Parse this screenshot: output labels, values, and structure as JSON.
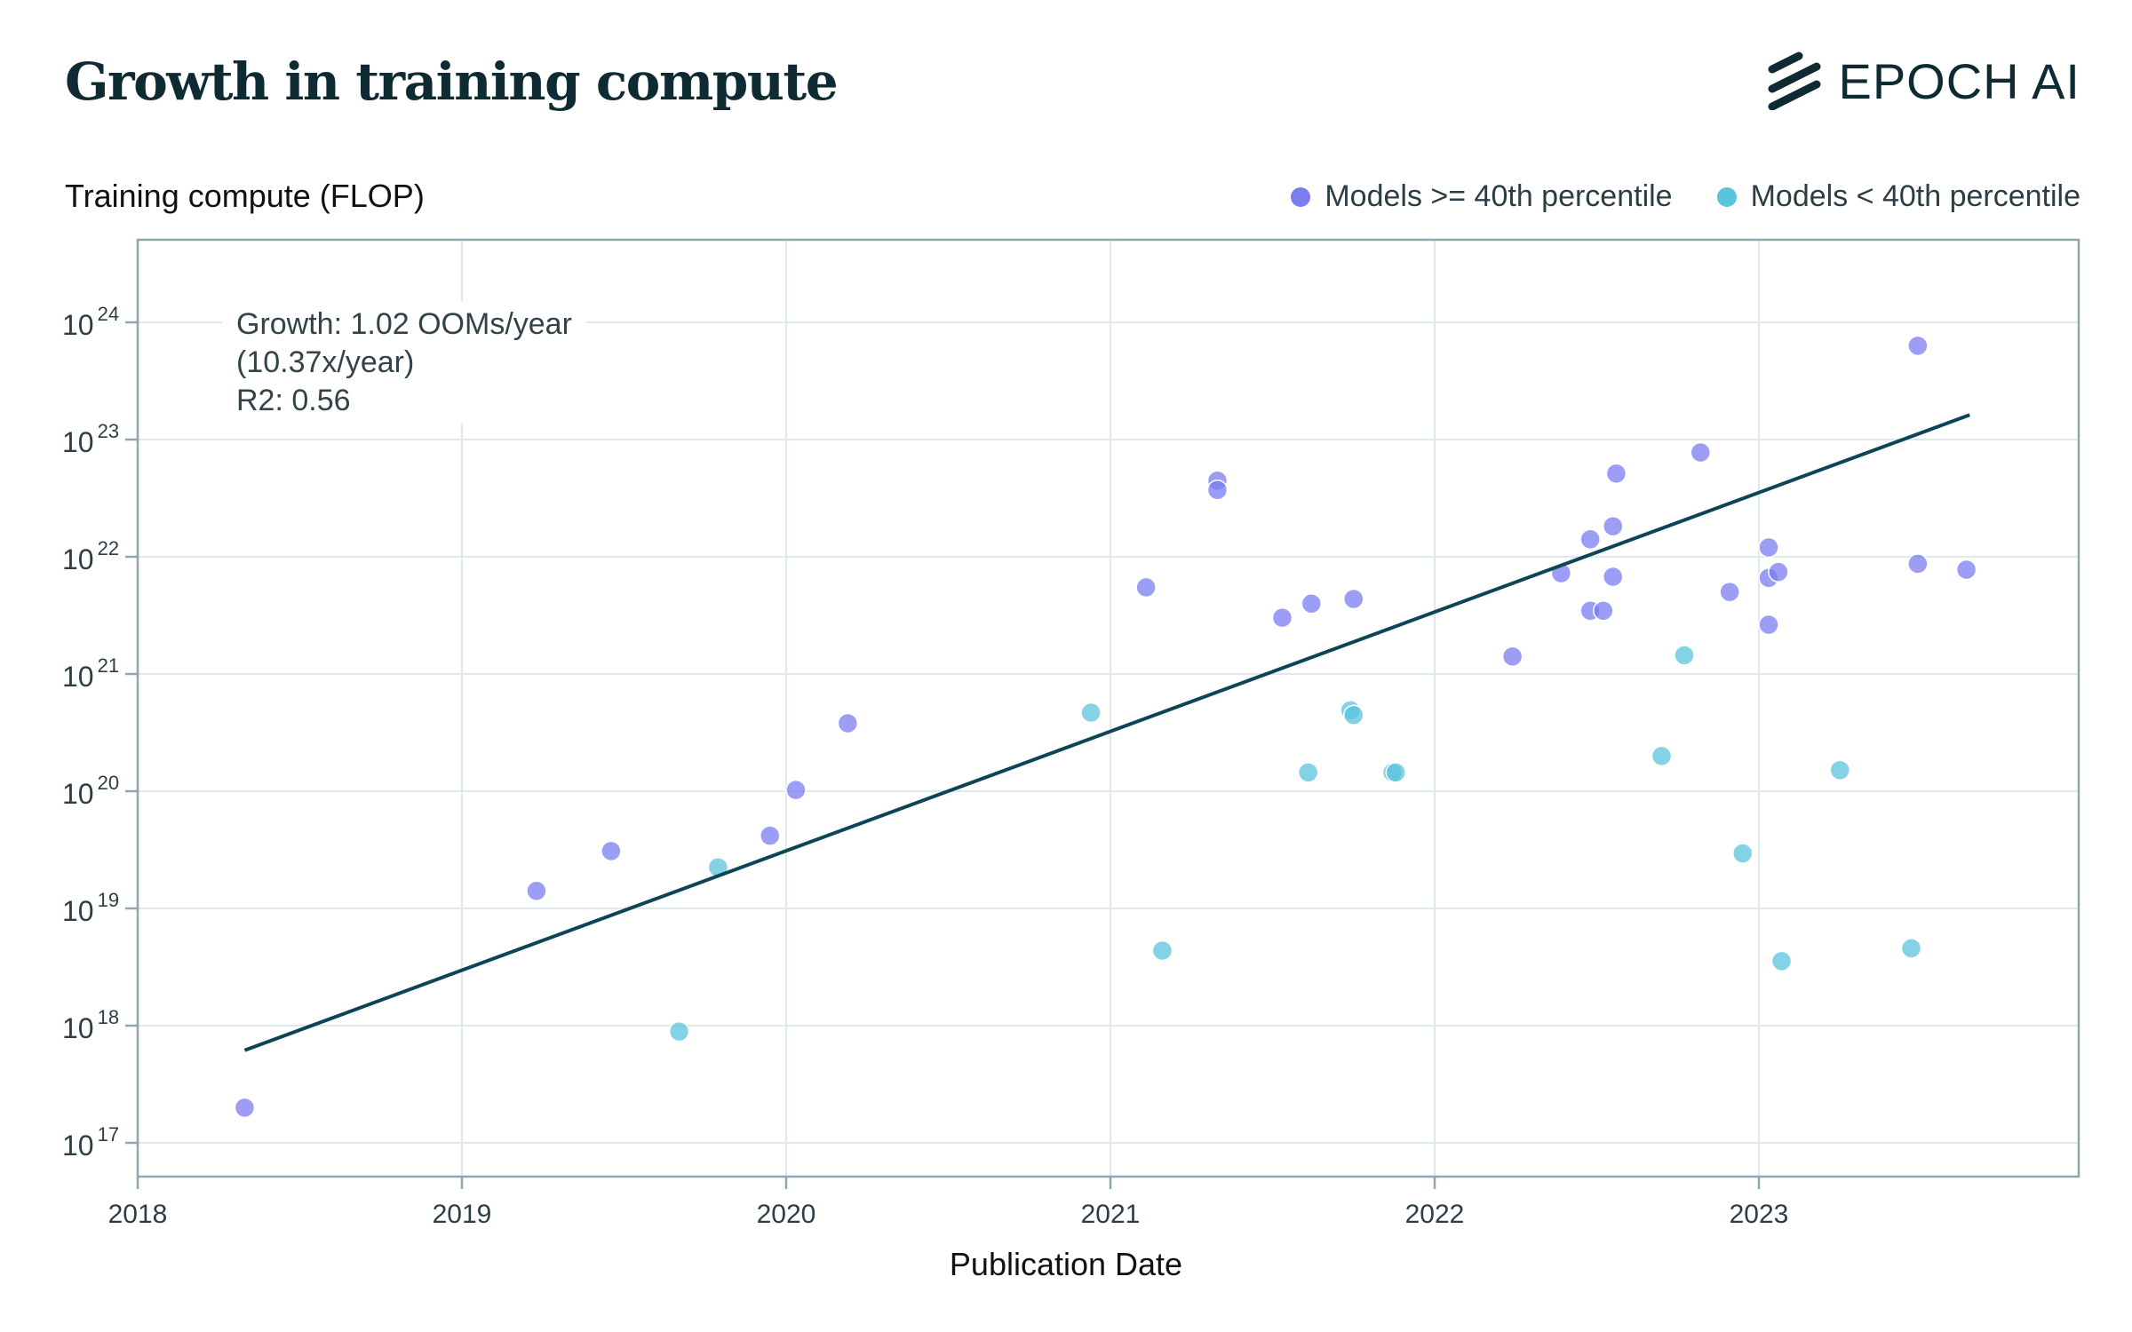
{
  "header": {
    "title": "Growth in training compute",
    "logo_text": "EPOCH AI"
  },
  "colors": {
    "high": "#7b7cf0",
    "low": "#5bc3dc",
    "trend": "#0e4554",
    "grid": "#dde9ea",
    "frame": "#90a6ad"
  },
  "chart_data": {
    "type": "scatter",
    "ylabel": "Training compute (FLOP)",
    "xlabel": "Publication Date",
    "y_scale": "log",
    "xlim": [
      2018,
      2024
    ],
    "ylim_log10": [
      16.7,
      24.7
    ],
    "x_ticks": [
      "2018",
      "2019",
      "2020",
      "2021",
      "2022",
      "2023"
    ],
    "y_ticks": [
      {
        "base": "10",
        "exp": "17",
        "log10": 17
      },
      {
        "base": "10",
        "exp": "18",
        "log10": 18
      },
      {
        "base": "10",
        "exp": "19",
        "log10": 19
      },
      {
        "base": "10",
        "exp": "20",
        "log10": 20
      },
      {
        "base": "10",
        "exp": "21",
        "log10": 21
      },
      {
        "base": "10",
        "exp": "22",
        "log10": 22
      },
      {
        "base": "10",
        "exp": "23",
        "log10": 23
      },
      {
        "base": "10",
        "exp": "24",
        "log10": 24
      }
    ],
    "annotation": [
      "Growth: 1.02 OOMs/year",
      "(10.37x/year)",
      "R2: 0.56"
    ],
    "legend_position": "top-right",
    "trend_line": {
      "x": [
        2018.33,
        2023.65
      ],
      "log10_y": [
        17.79,
        23.21
      ]
    },
    "series": [
      {
        "name": "Models >= 40th percentile",
        "color": "#7b7cf0",
        "points": [
          {
            "x": 2018.33,
            "log10_y": 17.3
          },
          {
            "x": 2019.23,
            "log10_y": 19.15
          },
          {
            "x": 2019.46,
            "log10_y": 19.49
          },
          {
            "x": 2019.95,
            "log10_y": 19.62
          },
          {
            "x": 2020.03,
            "log10_y": 20.01
          },
          {
            "x": 2020.19,
            "log10_y": 20.58
          },
          {
            "x": 2021.11,
            "log10_y": 21.74
          },
          {
            "x": 2021.33,
            "log10_y": 22.65
          },
          {
            "x": 2021.33,
            "log10_y": 22.57
          },
          {
            "x": 2021.53,
            "log10_y": 21.48
          },
          {
            "x": 2021.62,
            "log10_y": 21.6
          },
          {
            "x": 2021.75,
            "log10_y": 21.64
          },
          {
            "x": 2022.24,
            "log10_y": 21.15
          },
          {
            "x": 2022.39,
            "log10_y": 21.86
          },
          {
            "x": 2022.48,
            "log10_y": 22.15
          },
          {
            "x": 2022.48,
            "log10_y": 21.54
          },
          {
            "x": 2022.52,
            "log10_y": 21.54
          },
          {
            "x": 2022.55,
            "log10_y": 22.26
          },
          {
            "x": 2022.55,
            "log10_y": 21.83
          },
          {
            "x": 2022.56,
            "log10_y": 22.71
          },
          {
            "x": 2022.82,
            "log10_y": 22.89
          },
          {
            "x": 2022.91,
            "log10_y": 21.7
          },
          {
            "x": 2023.03,
            "log10_y": 22.08
          },
          {
            "x": 2023.03,
            "log10_y": 21.82
          },
          {
            "x": 2023.06,
            "log10_y": 21.87
          },
          {
            "x": 2023.03,
            "log10_y": 21.42
          },
          {
            "x": 2023.49,
            "log10_y": 23.8
          },
          {
            "x": 2023.49,
            "log10_y": 21.94
          },
          {
            "x": 2023.64,
            "log10_y": 21.89
          }
        ]
      },
      {
        "name": "Models < 40th percentile",
        "color": "#5bc3dc",
        "points": [
          {
            "x": 2019.67,
            "log10_y": 17.95
          },
          {
            "x": 2019.79,
            "log10_y": 19.35
          },
          {
            "x": 2020.94,
            "log10_y": 20.67
          },
          {
            "x": 2021.16,
            "log10_y": 18.64
          },
          {
            "x": 2021.61,
            "log10_y": 20.16
          },
          {
            "x": 2021.74,
            "log10_y": 20.69
          },
          {
            "x": 2021.75,
            "log10_y": 20.65
          },
          {
            "x": 2021.87,
            "log10_y": 20.16
          },
          {
            "x": 2021.88,
            "log10_y": 20.16
          },
          {
            "x": 2022.7,
            "log10_y": 20.3
          },
          {
            "x": 2022.77,
            "log10_y": 21.16
          },
          {
            "x": 2022.95,
            "log10_y": 19.47
          },
          {
            "x": 2023.07,
            "log10_y": 18.55
          },
          {
            "x": 2023.25,
            "log10_y": 20.18
          },
          {
            "x": 2023.47,
            "log10_y": 18.66
          }
        ]
      }
    ]
  }
}
